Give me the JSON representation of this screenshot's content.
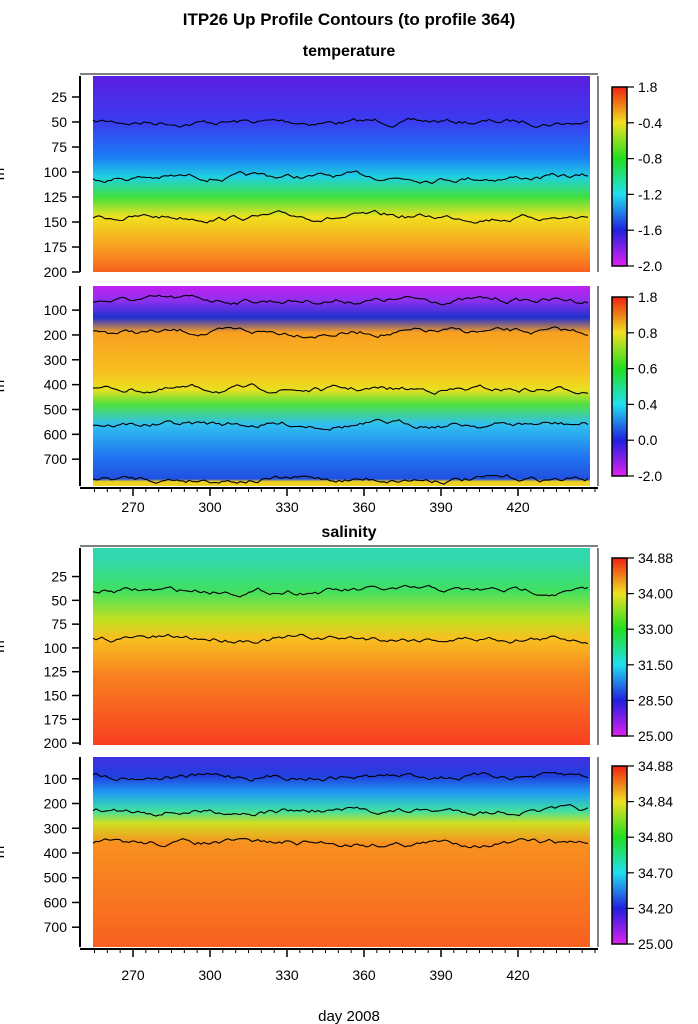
{
  "title": "ITP26 Up Profile Contours (to profile 364)",
  "xlabel": "day 2008",
  "ylabel": "m",
  "chart_data": [
    {
      "type": "heatmap",
      "title": "temperature",
      "variable": "temperature",
      "xlim": [
        255,
        450
      ],
      "ylim": [
        200,
        0
      ],
      "xticks": [
        270,
        300,
        330,
        360,
        390,
        420
      ],
      "yticks": [
        25,
        50,
        75,
        100,
        125,
        150,
        175,
        200
      ],
      "colorbar": {
        "ticks": [
          "1.8",
          "-0.4",
          "-0.8",
          "-1.2",
          "-1.6",
          "-2.0"
        ]
      },
      "profile": [
        {
          "depth": 5,
          "color": "#5a1ee0"
        },
        {
          "depth": 50,
          "color": "#3a3cf0"
        },
        {
          "depth": 85,
          "color": "#1a7cf5"
        },
        {
          "depth": 105,
          "color": "#20d0e0"
        },
        {
          "depth": 125,
          "color": "#40e040"
        },
        {
          "depth": 145,
          "color": "#f0e020"
        },
        {
          "depth": 175,
          "color": "#f8a020"
        },
        {
          "depth": 200,
          "color": "#f86020"
        }
      ]
    },
    {
      "type": "heatmap",
      "variable": "temperature",
      "xlim": [
        255,
        450
      ],
      "ylim": [
        800,
        0
      ],
      "xticks": [
        270,
        300,
        330,
        360,
        390,
        420
      ],
      "yticks": [
        100,
        200,
        300,
        400,
        500,
        600,
        700
      ],
      "colorbar": {
        "ticks": [
          "1.8",
          "0.8",
          "0.6",
          "0.4",
          "0.0",
          "-2.0"
        ]
      },
      "profile": [
        {
          "depth": 0,
          "color": "#c020f0"
        },
        {
          "depth": 60,
          "color": "#9030f0"
        },
        {
          "depth": 130,
          "color": "#2030d0"
        },
        {
          "depth": 190,
          "color": "#f8a020"
        },
        {
          "depth": 350,
          "color": "#f8c020"
        },
        {
          "depth": 420,
          "color": "#e8e020"
        },
        {
          "depth": 480,
          "color": "#50e040"
        },
        {
          "depth": 560,
          "color": "#30c0f0"
        },
        {
          "depth": 700,
          "color": "#2070f0"
        },
        {
          "depth": 780,
          "color": "#2050e0"
        },
        {
          "depth": 790,
          "color": "#f0d020"
        }
      ]
    },
    {
      "type": "heatmap",
      "title": "salinity",
      "variable": "salinity",
      "xlim": [
        255,
        450
      ],
      "ylim": [
        200,
        0
      ],
      "xticks": [
        270,
        300,
        330,
        360,
        390,
        420
      ],
      "yticks": [
        25,
        50,
        75,
        100,
        125,
        150,
        175,
        200
      ],
      "colorbar": {
        "ticks": [
          "34.88",
          "34.00",
          "33.00",
          "31.50",
          "28.50",
          "25.00"
        ]
      },
      "profile": [
        {
          "depth": 5,
          "color": "#30d8b0"
        },
        {
          "depth": 40,
          "color": "#40e060"
        },
        {
          "depth": 70,
          "color": "#c0e020"
        },
        {
          "depth": 90,
          "color": "#f8c020"
        },
        {
          "depth": 130,
          "color": "#f88020"
        },
        {
          "depth": 200,
          "color": "#f84020"
        }
      ]
    },
    {
      "type": "heatmap",
      "variable": "salinity",
      "xlim": [
        255,
        450
      ],
      "ylim": [
        800,
        0
      ],
      "xticks": [
        270,
        300,
        330,
        360,
        390,
        420
      ],
      "yticks": [
        100,
        200,
        300,
        400,
        500,
        600,
        700
      ],
      "colorbar": {
        "ticks": [
          "34.88",
          "34.84",
          "34.80",
          "34.70",
          "34.20",
          "25.00"
        ]
      },
      "profile": [
        {
          "depth": 0,
          "color": "#4030e0"
        },
        {
          "depth": 90,
          "color": "#2040e0"
        },
        {
          "depth": 160,
          "color": "#20a0f0"
        },
        {
          "depth": 230,
          "color": "#40e0a0"
        },
        {
          "depth": 280,
          "color": "#d0e020"
        },
        {
          "depth": 360,
          "color": "#f89020"
        },
        {
          "depth": 790,
          "color": "#f86020"
        }
      ]
    }
  ]
}
